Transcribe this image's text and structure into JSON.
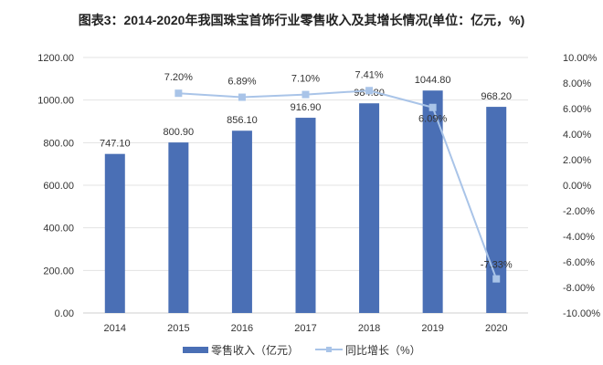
{
  "chart_data": {
    "type": "bar+line",
    "title": "图表3：2014-2020年我国珠宝首饰行业零售收入及其增长情况(单位：亿元，%)",
    "categories": [
      "2014",
      "2015",
      "2016",
      "2017",
      "2018",
      "2019",
      "2020"
    ],
    "series": [
      {
        "name": "零售收入（亿元）",
        "type": "bar",
        "axis": "left",
        "color": "#4a6fb5",
        "values": [
          747.1,
          800.9,
          856.1,
          916.9,
          984.8,
          1044.8,
          968.2
        ],
        "labels": [
          "747.10",
          "800.90",
          "856.10",
          "916.90",
          "984.80",
          "1044.80",
          "968.20"
        ]
      },
      {
        "name": "同比增长（%）",
        "type": "line",
        "axis": "right",
        "color": "#a9c4e8",
        "values": [
          null,
          7.2,
          6.89,
          7.1,
          7.41,
          6.09,
          -7.33
        ],
        "labels": [
          "",
          "7.20%",
          "6.89%",
          "7.10%",
          "7.41%",
          "6.09%",
          "-7.33%"
        ]
      }
    ],
    "y_left": {
      "range": [
        0,
        1200
      ],
      "ticks": [
        "0.00",
        "200.00",
        "400.00",
        "600.00",
        "800.00",
        "1000.00",
        "1200.00"
      ]
    },
    "y_right": {
      "range": [
        -10,
        10
      ],
      "ticks": [
        "-10.00%",
        "-8.00%",
        "-6.00%",
        "-4.00%",
        "-2.00%",
        "0.00%",
        "2.00%",
        "4.00%",
        "6.00%",
        "8.00%",
        "10.00%"
      ]
    },
    "grid": true,
    "legend_placement": "bottom"
  }
}
